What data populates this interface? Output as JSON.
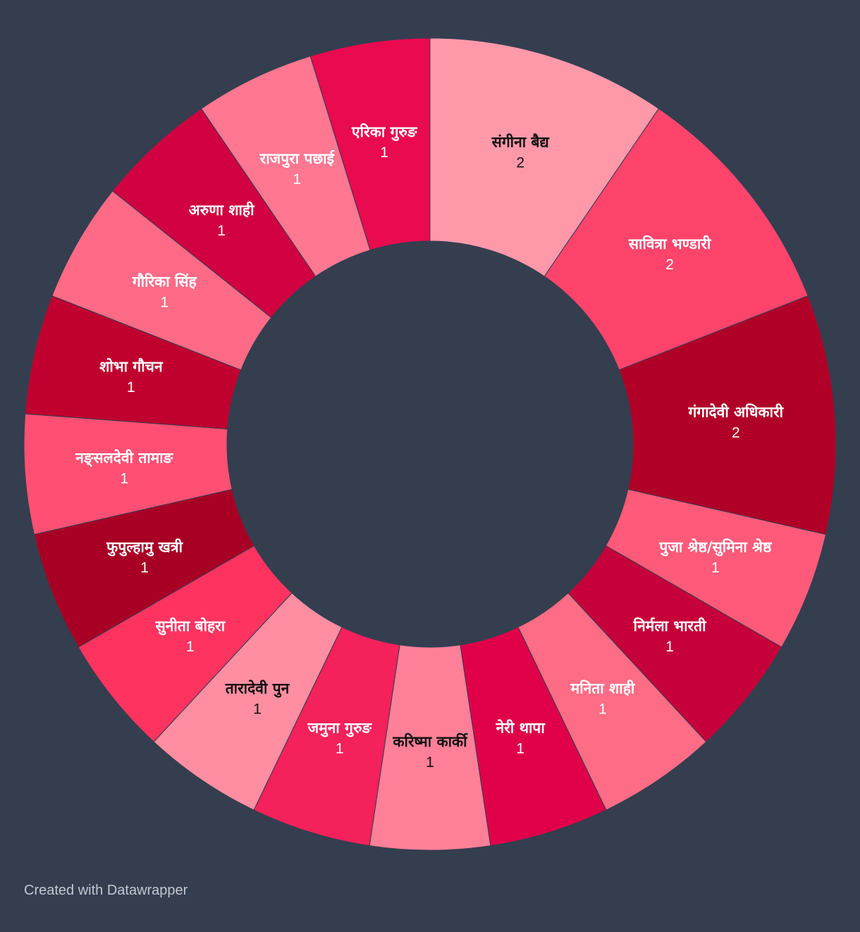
{
  "chart_data": {
    "type": "pie",
    "variant": "donut",
    "slices": [
      {
        "label": "संगीना बैद्य",
        "value": 2,
        "color": "#ff99aa",
        "text_color": "#111111"
      },
      {
        "label": "सावित्रा भण्डारी",
        "value": 2,
        "color": "#ff446c",
        "text_color": "#ffffff"
      },
      {
        "label": "गंगादेवी अधिकारी",
        "value": 2,
        "color": "#b10028",
        "text_color": "#ffffff"
      },
      {
        "label": "पुजा श्रेष्ठ/सुमिना श्रेष्ठ",
        "value": 1,
        "color": "#ff5a79",
        "text_color": "#ffffff"
      },
      {
        "label": "निर्मला भारती",
        "value": 1,
        "color": "#c6003a",
        "text_color": "#ffffff"
      },
      {
        "label": "मनिता शाही",
        "value": 1,
        "color": "#ff6c85",
        "text_color": "#ffffff"
      },
      {
        "label": "नेरी थापा",
        "value": 1,
        "color": "#e0004a",
        "text_color": "#ffffff"
      },
      {
        "label": "करिष्मा कार्की",
        "value": 1,
        "color": "#ff8098",
        "text_color": "#111111"
      },
      {
        "label": "जमुना गुरुङ",
        "value": 1,
        "color": "#f5215a",
        "text_color": "#ffffff"
      },
      {
        "label": "तारादेवी पुन",
        "value": 1,
        "color": "#ff8ea2",
        "text_color": "#111111"
      },
      {
        "label": "सुनीता बोहरा",
        "value": 1,
        "color": "#ff3360",
        "text_color": "#ffffff"
      },
      {
        "label": "फुपुल्हामु खत्री",
        "value": 1,
        "color": "#a80025",
        "text_color": "#ffffff"
      },
      {
        "label": "नङ्सलदेवी तामाङ",
        "value": 1,
        "color": "#ff4f73",
        "text_color": "#ffffff"
      },
      {
        "label": "शोभा गौचन",
        "value": 1,
        "color": "#c0002f",
        "text_color": "#ffffff"
      },
      {
        "label": "गौरिका सिंह",
        "value": 1,
        "color": "#ff6b86",
        "text_color": "#ffffff"
      },
      {
        "label": "अरुणा शाही",
        "value": 1,
        "color": "#d10040",
        "text_color": "#ffffff"
      },
      {
        "label": "राजपुरा पछाई",
        "value": 1,
        "color": "#ff7791",
        "text_color": "#ffffff"
      },
      {
        "label": "एरिका गुरुङ",
        "value": 1,
        "color": "#e90a50",
        "text_color": "#ffffff"
      }
    ],
    "background": "#343e4f",
    "legend": "none"
  },
  "footer": {
    "credit": "Created with Datawrapper"
  }
}
